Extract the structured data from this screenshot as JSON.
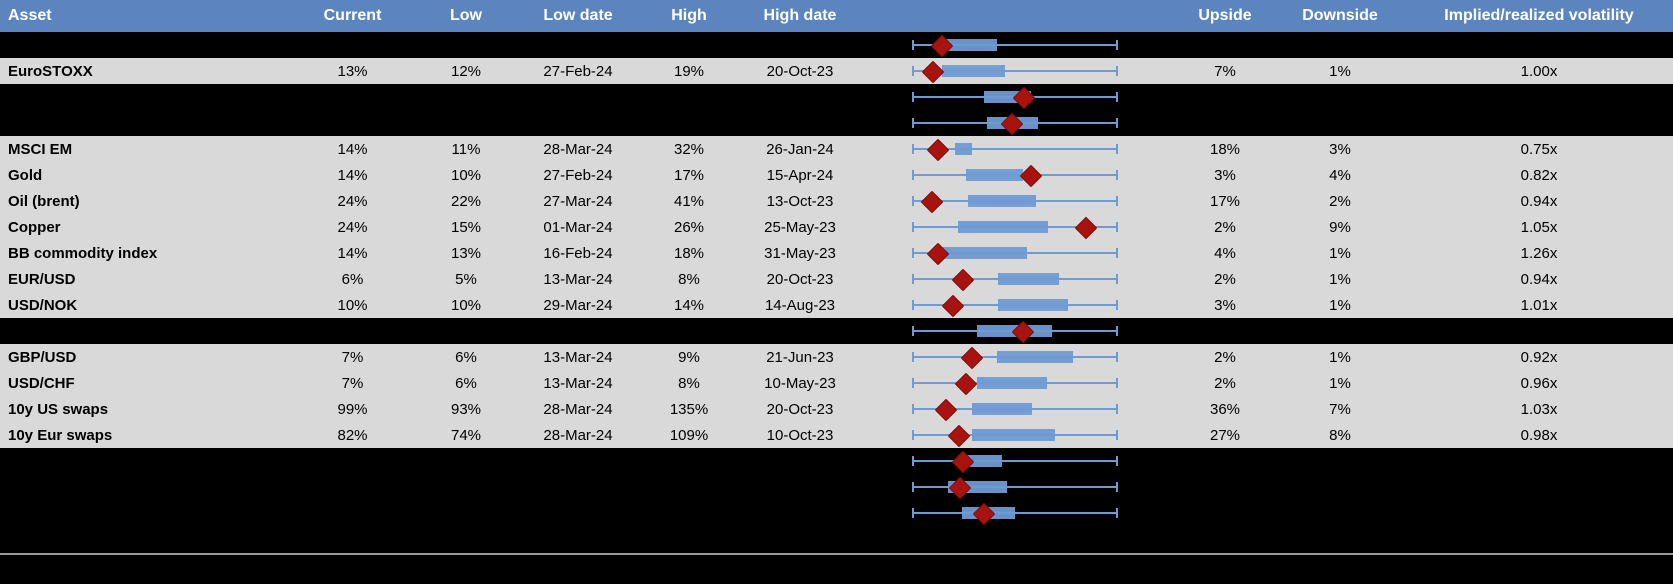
{
  "colors": {
    "header_bg": "#5C85C0",
    "header_text": "#FFFFFF",
    "row_bg": "#D9D9D9",
    "hidden_row_bg": "#000000",
    "text": "#000000",
    "box_fill": "#6F9BD3",
    "whisker": "#6F9BD3",
    "marker_fill": "#A8130F",
    "marker_edge": "#7E0E0B",
    "divider_line": "#999999"
  },
  "table": {
    "headers": {
      "asset": "Asset",
      "current": "Current",
      "low": "Low",
      "low_date": "Low date",
      "high": "High",
      "high_date": "High date",
      "upside": "Upside",
      "downside": "Downside",
      "implied": "Implied/realized volatility"
    },
    "rows": [
      {
        "type": "hidden",
        "plot": {
          "box_lo": 0.157,
          "box_hi": 0.412,
          "marker": 0.137
        }
      },
      {
        "type": "data",
        "asset": "EuroSTOXX",
        "current": "13%",
        "low": "12%",
        "low_date": "27-Feb-24",
        "high": "19%",
        "high_date": "20-Oct-23",
        "upside": "7%",
        "downside": "1%",
        "implied": "1.00x",
        "plot": {
          "box_lo": 0.141,
          "box_hi": 0.451,
          "marker": 0.093
        }
      },
      {
        "type": "hidden",
        "plot": {
          "box_lo": 0.35,
          "box_hi": 0.577,
          "marker": 0.538
        }
      },
      {
        "type": "hidden",
        "plot": {
          "box_lo": 0.361,
          "box_hi": 0.614,
          "marker": 0.479
        }
      },
      {
        "type": "data",
        "asset": "MSCI EM",
        "current": "14%",
        "low": "11%",
        "low_date": "28-Mar-24",
        "high": "32%",
        "high_date": "26-Jan-24",
        "upside": "18%",
        "downside": "3%",
        "implied": "0.75x",
        "plot": {
          "box_lo": 0.206,
          "box_hi": 0.291,
          "marker": 0.119
        }
      },
      {
        "type": "data",
        "asset": "Gold",
        "current": "14%",
        "low": "10%",
        "low_date": "27-Feb-24",
        "high": "17%",
        "high_date": "15-Apr-24",
        "upside": "3%",
        "downside": "4%",
        "implied": "0.82x",
        "plot": {
          "box_lo": 0.26,
          "box_hi": 0.538,
          "marker": 0.574
        }
      },
      {
        "type": "data",
        "asset": "Oil (brent)",
        "current": "24%",
        "low": "22%",
        "low_date": "27-Mar-24",
        "high": "41%",
        "high_date": "13-Oct-23",
        "upside": "17%",
        "downside": "2%",
        "implied": "0.94x",
        "plot": {
          "box_lo": 0.268,
          "box_hi": 0.603,
          "marker": 0.087
        }
      },
      {
        "type": "data",
        "asset": "Copper",
        "current": "24%",
        "low": "15%",
        "low_date": "01-Mar-24",
        "high": "26%",
        "high_date": "25-May-23",
        "upside": "2%",
        "downside": "9%",
        "implied": "1.05x",
        "plot": {
          "box_lo": 0.222,
          "box_hi": 0.663,
          "marker": 0.843
        }
      },
      {
        "type": "data",
        "asset": "BB commodity index",
        "current": "14%",
        "low": "13%",
        "low_date": "16-Feb-24",
        "high": "18%",
        "high_date": "31-May-23",
        "upside": "4%",
        "downside": "1%",
        "implied": "1.26x",
        "plot": {
          "box_lo": 0.132,
          "box_hi": 0.56,
          "marker": 0.119
        }
      },
      {
        "type": "data",
        "asset": "EUR/USD",
        "current": "6%",
        "low": "5%",
        "low_date": "13-Mar-24",
        "high": "8%",
        "high_date": "20-Oct-23",
        "upside": "2%",
        "downside": "1%",
        "implied": "0.94x",
        "plot": {
          "box_lo": 0.418,
          "box_hi": 0.716,
          "marker": 0.242
        }
      },
      {
        "type": "data",
        "asset": "USD/NOK",
        "current": "10%",
        "low": "10%",
        "low_date": "29-Mar-24",
        "high": "14%",
        "high_date": "14-Aug-23",
        "upside": "3%",
        "downside": "1%",
        "implied": "1.01x",
        "plot": {
          "box_lo": 0.415,
          "box_hi": 0.761,
          "marker": 0.19
        }
      },
      {
        "type": "hidden",
        "plot": {
          "box_lo": 0.312,
          "box_hi": 0.68,
          "marker": 0.533
        }
      },
      {
        "type": "data",
        "asset": "GBP/USD",
        "current": "7%",
        "low": "6%",
        "low_date": "13-Mar-24",
        "high": "9%",
        "high_date": "21-Jun-23",
        "upside": "2%",
        "downside": "1%",
        "implied": "0.92x",
        "plot": {
          "box_lo": 0.41,
          "box_hi": 0.786,
          "marker": 0.283
        }
      },
      {
        "type": "data",
        "asset": "USD/CHF",
        "current": "7%",
        "low": "6%",
        "low_date": "13-Mar-24",
        "high": "8%",
        "high_date": "10-May-23",
        "upside": "2%",
        "downside": "1%",
        "implied": "0.96x",
        "plot": {
          "box_lo": 0.312,
          "box_hi": 0.655,
          "marker": 0.255
        }
      },
      {
        "type": "data",
        "asset": "10y US swaps",
        "current": "99%",
        "low": "93%",
        "low_date": "28-Mar-24",
        "high": "135%",
        "high_date": "20-Oct-23",
        "upside": "36%",
        "downside": "7%",
        "implied": "1.03x",
        "plot": {
          "box_lo": 0.288,
          "box_hi": 0.585,
          "marker": 0.157
        }
      },
      {
        "type": "data",
        "asset": "10y Eur swaps",
        "current": "82%",
        "low": "74%",
        "low_date": "28-Mar-24",
        "high": "109%",
        "high_date": "10-Oct-23",
        "upside": "27%",
        "downside": "8%",
        "implied": "0.98x",
        "plot": {
          "box_lo": 0.288,
          "box_hi": 0.696,
          "marker": 0.222
        }
      },
      {
        "type": "hidden",
        "plot": {
          "box_lo": 0.222,
          "box_hi": 0.435,
          "marker": 0.242
        }
      },
      {
        "type": "hidden",
        "plot": {
          "box_lo": 0.173,
          "box_hi": 0.462,
          "marker": 0.225
        }
      },
      {
        "type": "hidden",
        "plot": {
          "box_lo": 0.239,
          "box_hi": 0.5,
          "marker": 0.345
        }
      }
    ]
  },
  "chart_data": {
    "type": "boxplot",
    "note": "Each row shows a horizontal whisker plot: whiskers span the 1y low-high volatility range (normalized 0-1 per row), blue box = interquartile-style range, red diamond = current level. Fractions per row are in table.rows[].plot.",
    "series": [
      {
        "name": "EuroSTOXX",
        "current": "13%",
        "low": "12%",
        "high": "19%"
      },
      {
        "name": "MSCI EM",
        "current": "14%",
        "low": "11%",
        "high": "32%"
      },
      {
        "name": "Gold",
        "current": "14%",
        "low": "10%",
        "high": "17%"
      },
      {
        "name": "Oil (brent)",
        "current": "24%",
        "low": "22%",
        "high": "41%"
      },
      {
        "name": "Copper",
        "current": "24%",
        "low": "15%",
        "high": "26%"
      },
      {
        "name": "BB commodity index",
        "current": "14%",
        "low": "13%",
        "high": "18%"
      },
      {
        "name": "EUR/USD",
        "current": "6%",
        "low": "5%",
        "high": "8%"
      },
      {
        "name": "USD/NOK",
        "current": "10%",
        "low": "10%",
        "high": "14%"
      },
      {
        "name": "GBP/USD",
        "current": "7%",
        "low": "6%",
        "high": "9%"
      },
      {
        "name": "USD/CHF",
        "current": "7%",
        "low": "6%",
        "high": "8%"
      },
      {
        "name": "10y US swaps",
        "current": "99%",
        "low": "93%",
        "high": "135%"
      },
      {
        "name": "10y Eur swaps",
        "current": "82%",
        "low": "74%",
        "high": "109%"
      }
    ],
    "legend_position": "none",
    "grid": false
  }
}
